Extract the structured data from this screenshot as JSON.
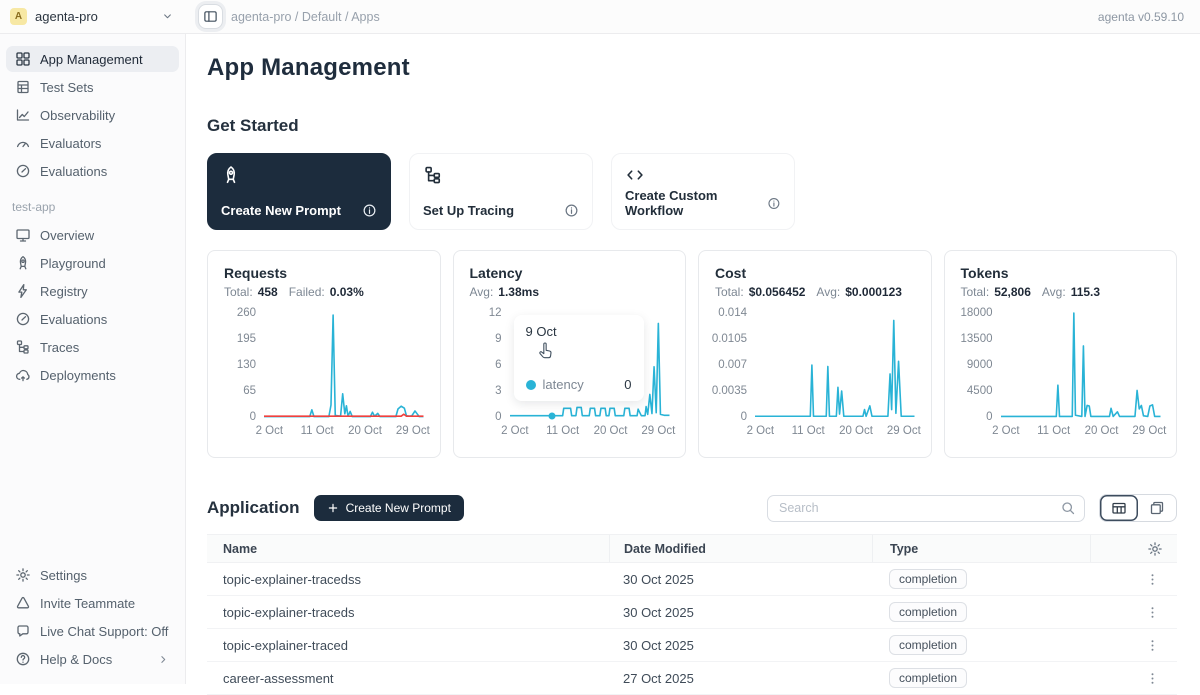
{
  "topbar": {
    "avatar_letter": "A",
    "workspace": "agenta-pro",
    "breadcrumb": "agenta-pro / Default / Apps",
    "version": "agenta v0.59.10"
  },
  "sidebar": {
    "main_items": [
      {
        "label": "App Management",
        "icon": "grid",
        "active": true
      },
      {
        "label": "Test Sets",
        "icon": "testsets",
        "active": false
      },
      {
        "label": "Observability",
        "icon": "observability",
        "active": false
      },
      {
        "label": "Evaluators",
        "icon": "gaugehalf",
        "active": false
      },
      {
        "label": "Evaluations",
        "icon": "speedo",
        "active": false
      }
    ],
    "section_label": "test-app",
    "app_items": [
      {
        "label": "Overview",
        "icon": "desktop"
      },
      {
        "label": "Playground",
        "icon": "rocket"
      },
      {
        "label": "Registry",
        "icon": "lightning"
      },
      {
        "label": "Evaluations",
        "icon": "speedo"
      },
      {
        "label": "Traces",
        "icon": "tree"
      },
      {
        "label": "Deployments",
        "icon": "cloud"
      }
    ],
    "footer_items": [
      {
        "label": "Settings",
        "icon": "gear"
      },
      {
        "label": "Invite Teammate",
        "icon": "triangle"
      },
      {
        "label": "Live Chat Support: Off",
        "icon": "chat"
      },
      {
        "label": "Help & Docs",
        "icon": "help",
        "chevron": true
      }
    ]
  },
  "main": {
    "page_title": "App Management",
    "get_started": {
      "heading": "Get Started",
      "cards": [
        {
          "label": "Create New Prompt",
          "icon": "rocket",
          "dark": true
        },
        {
          "label": "Set Up Tracing",
          "icon": "tree",
          "dark": false
        },
        {
          "label": "Create Custom Workflow",
          "icon": "code",
          "dark": false
        }
      ]
    },
    "application": {
      "heading": "Application",
      "create_button_label": "Create New Prompt",
      "search_placeholder": "Search",
      "table": {
        "columns": [
          "Name",
          "Date Modified",
          "Type"
        ],
        "rows": [
          {
            "name": "topic-explainer-tracedss",
            "date": "30 Oct 2025",
            "type": "completion"
          },
          {
            "name": "topic-explainer-traceds",
            "date": "30 Oct 2025",
            "type": "completion"
          },
          {
            "name": "topic-explainer-traced",
            "date": "30 Oct 2025",
            "type": "completion"
          },
          {
            "name": "career-assessment",
            "date": "27 Oct 2025",
            "type": "completion"
          }
        ]
      }
    }
  },
  "tooltip": {
    "date": "9 Oct",
    "series": "latency",
    "value": "0"
  },
  "chart_data": [
    {
      "type": "line",
      "title": "Requests",
      "stats": [
        [
          "Total:",
          "458"
        ],
        [
          "Failed:",
          "0.03%"
        ]
      ],
      "yticks": [
        260,
        195,
        130,
        65,
        0
      ],
      "xticks": [
        {
          "x": 2,
          "label": "2 Oct"
        },
        {
          "x": 11,
          "label": "11 Oct"
        },
        {
          "x": 20,
          "label": "20 Oct"
        },
        {
          "x": 29,
          "label": "29 Oct"
        }
      ],
      "xlim": [
        1,
        31
      ],
      "ylim": [
        0,
        260
      ],
      "grid": false,
      "legend": "none",
      "series": [
        {
          "name": "requests",
          "color": "#29b3d6",
          "points": [
            [
              1,
              1
            ],
            [
              9,
              1
            ],
            [
              9.6,
              1
            ],
            [
              10,
              18
            ],
            [
              10.4,
              1
            ],
            [
              13.2,
              1
            ],
            [
              13.6,
              30
            ],
            [
              14,
              255
            ],
            [
              14.4,
              4
            ],
            [
              15.4,
              2
            ],
            [
              15.8,
              58
            ],
            [
              16.2,
              8
            ],
            [
              16.5,
              28
            ],
            [
              16.8,
              2
            ],
            [
              17.2,
              14
            ],
            [
              17.6,
              1
            ],
            [
              21,
              1
            ],
            [
              21.4,
              12
            ],
            [
              21.8,
              2
            ],
            [
              22.4,
              9
            ],
            [
              22.8,
              1
            ],
            [
              25.8,
              1
            ],
            [
              26.2,
              20
            ],
            [
              26.8,
              27
            ],
            [
              27.4,
              22
            ],
            [
              27.8,
              3
            ],
            [
              28.4,
              2
            ],
            [
              28.8,
              3
            ],
            [
              29.4,
              15
            ],
            [
              29.8,
              8
            ],
            [
              30.2,
              1
            ],
            [
              31,
              1
            ]
          ]
        },
        {
          "name": "failed",
          "color": "#f0413e",
          "points": [
            [
              1,
              2
            ],
            [
              26.8,
              2
            ],
            [
              27.3,
              7
            ],
            [
              27.8,
              2
            ],
            [
              31,
              2
            ]
          ]
        }
      ]
    },
    {
      "type": "line",
      "title": "Latency",
      "stats": [
        [
          "Avg:",
          "1.38ms"
        ]
      ],
      "yticks": [
        12,
        9,
        6,
        3,
        0
      ],
      "xticks": [
        {
          "x": 2,
          "label": "2 Oct"
        },
        {
          "x": 11,
          "label": "11 Oct"
        },
        {
          "x": 20,
          "label": "20 Oct"
        },
        {
          "x": 29,
          "label": "29 Oct"
        }
      ],
      "xlim": [
        1,
        31
      ],
      "ylim": [
        0,
        12
      ],
      "grid": false,
      "legend": "none",
      "marker": [
        9,
        0.15
      ],
      "series": [
        {
          "name": "latency",
          "color": "#29b3d6",
          "points": [
            [
              1,
              0.15
            ],
            [
              10.9,
              0.15
            ],
            [
              11.1,
              1
            ],
            [
              12.4,
              1
            ],
            [
              12.6,
              0.15
            ],
            [
              13.4,
              0.15
            ],
            [
              13.6,
              1.1
            ],
            [
              14.4,
              1.1
            ],
            [
              14.6,
              0.15
            ],
            [
              15.9,
              0.15
            ],
            [
              16.1,
              1
            ],
            [
              16.9,
              1
            ],
            [
              17.1,
              0.15
            ],
            [
              17.9,
              0.15
            ],
            [
              18.1,
              1
            ],
            [
              18.9,
              1
            ],
            [
              19.1,
              0.15
            ],
            [
              19.6,
              0.15
            ],
            [
              19.8,
              1
            ],
            [
              20.6,
              1
            ],
            [
              20.8,
              0.15
            ],
            [
              22.4,
              0.15
            ],
            [
              22.6,
              1
            ],
            [
              23.4,
              1
            ],
            [
              23.6,
              0.15
            ],
            [
              24.9,
              0.15
            ],
            [
              25.1,
              0.9
            ],
            [
              25.7,
              0.15
            ],
            [
              26.4,
              0.15
            ],
            [
              26.6,
              1.2
            ],
            [
              26.9,
              0.3
            ],
            [
              27.3,
              2.6
            ],
            [
              27.7,
              0.4
            ],
            [
              28.1,
              5.8
            ],
            [
              28.5,
              0.5
            ],
            [
              28.9,
              10.8
            ],
            [
              29.3,
              0.3
            ],
            [
              30,
              0.2
            ],
            [
              31,
              0.2
            ]
          ]
        }
      ]
    },
    {
      "type": "line",
      "title": "Cost",
      "stats": [
        [
          "Total:",
          "$0.056452"
        ],
        [
          "Avg:",
          "$0.000123"
        ]
      ],
      "yticks": [
        0.014,
        0.0105,
        0.007,
        0.0035,
        0
      ],
      "xticks": [
        {
          "x": 2,
          "label": "2 Oct"
        },
        {
          "x": 11,
          "label": "11 Oct"
        },
        {
          "x": 20,
          "label": "20 Oct"
        },
        {
          "x": 29,
          "label": "29 Oct"
        }
      ],
      "xlim": [
        1,
        31
      ],
      "ylim": [
        0,
        0.014
      ],
      "grid": false,
      "legend": "none",
      "series": [
        {
          "name": "cost",
          "color": "#29b3d6",
          "points": [
            [
              1,
              0.0001
            ],
            [
              11.4,
              0.0001
            ],
            [
              11.7,
              0.007
            ],
            [
              12,
              0.0001
            ],
            [
              14.4,
              0.0001
            ],
            [
              14.7,
              0.0068
            ],
            [
              15,
              0.0001
            ],
            [
              16.3,
              0.0001
            ],
            [
              16.6,
              0.004
            ],
            [
              16.9,
              0.0004
            ],
            [
              17.3,
              0.0035
            ],
            [
              17.7,
              0.0001
            ],
            [
              21.3,
              0.0001
            ],
            [
              21.6,
              0.001
            ],
            [
              21.9,
              0.0001
            ],
            [
              22.6,
              0.0015
            ],
            [
              23,
              0.0001
            ],
            [
              26,
              0.0001
            ],
            [
              26.4,
              0.0058
            ],
            [
              26.7,
              0.001
            ],
            [
              27.1,
              0.013
            ],
            [
              27.5,
              0.0005
            ],
            [
              28,
              0.0075
            ],
            [
              28.5,
              0.0001
            ],
            [
              31,
              0.0001
            ]
          ]
        }
      ]
    },
    {
      "type": "line",
      "title": "Tokens",
      "stats": [
        [
          "Total:",
          "52,806"
        ],
        [
          "Avg:",
          "115.3"
        ]
      ],
      "yticks": [
        18000,
        13500,
        9000,
        4500,
        0
      ],
      "xticks": [
        {
          "x": 2,
          "label": "2 Oct"
        },
        {
          "x": 11,
          "label": "11 Oct"
        },
        {
          "x": 20,
          "label": "20 Oct"
        },
        {
          "x": 29,
          "label": "29 Oct"
        }
      ],
      "xlim": [
        1,
        31
      ],
      "ylim": [
        0,
        18000
      ],
      "grid": false,
      "legend": "none",
      "series": [
        {
          "name": "tokens",
          "color": "#29b3d6",
          "points": [
            [
              1,
              100
            ],
            [
              11.4,
              100
            ],
            [
              11.7,
              5500
            ],
            [
              12,
              100
            ],
            [
              14.4,
              100
            ],
            [
              14.7,
              18000
            ],
            [
              15,
              300
            ],
            [
              16.2,
              100
            ],
            [
              16.5,
              12300
            ],
            [
              16.8,
              100
            ],
            [
              17.2,
              2000
            ],
            [
              17.6,
              1900
            ],
            [
              17.9,
              100
            ],
            [
              21.4,
              100
            ],
            [
              21.7,
              1500
            ],
            [
              22.1,
              100
            ],
            [
              22.9,
              900
            ],
            [
              23.3,
              100
            ],
            [
              26.2,
              100
            ],
            [
              26.6,
              4600
            ],
            [
              27,
              1400
            ],
            [
              27.4,
              2000
            ],
            [
              27.8,
              200
            ],
            [
              28.6,
              100
            ],
            [
              29,
              1900
            ],
            [
              29.5,
              2100
            ],
            [
              29.9,
              100
            ],
            [
              31,
              100
            ]
          ]
        }
      ]
    }
  ]
}
